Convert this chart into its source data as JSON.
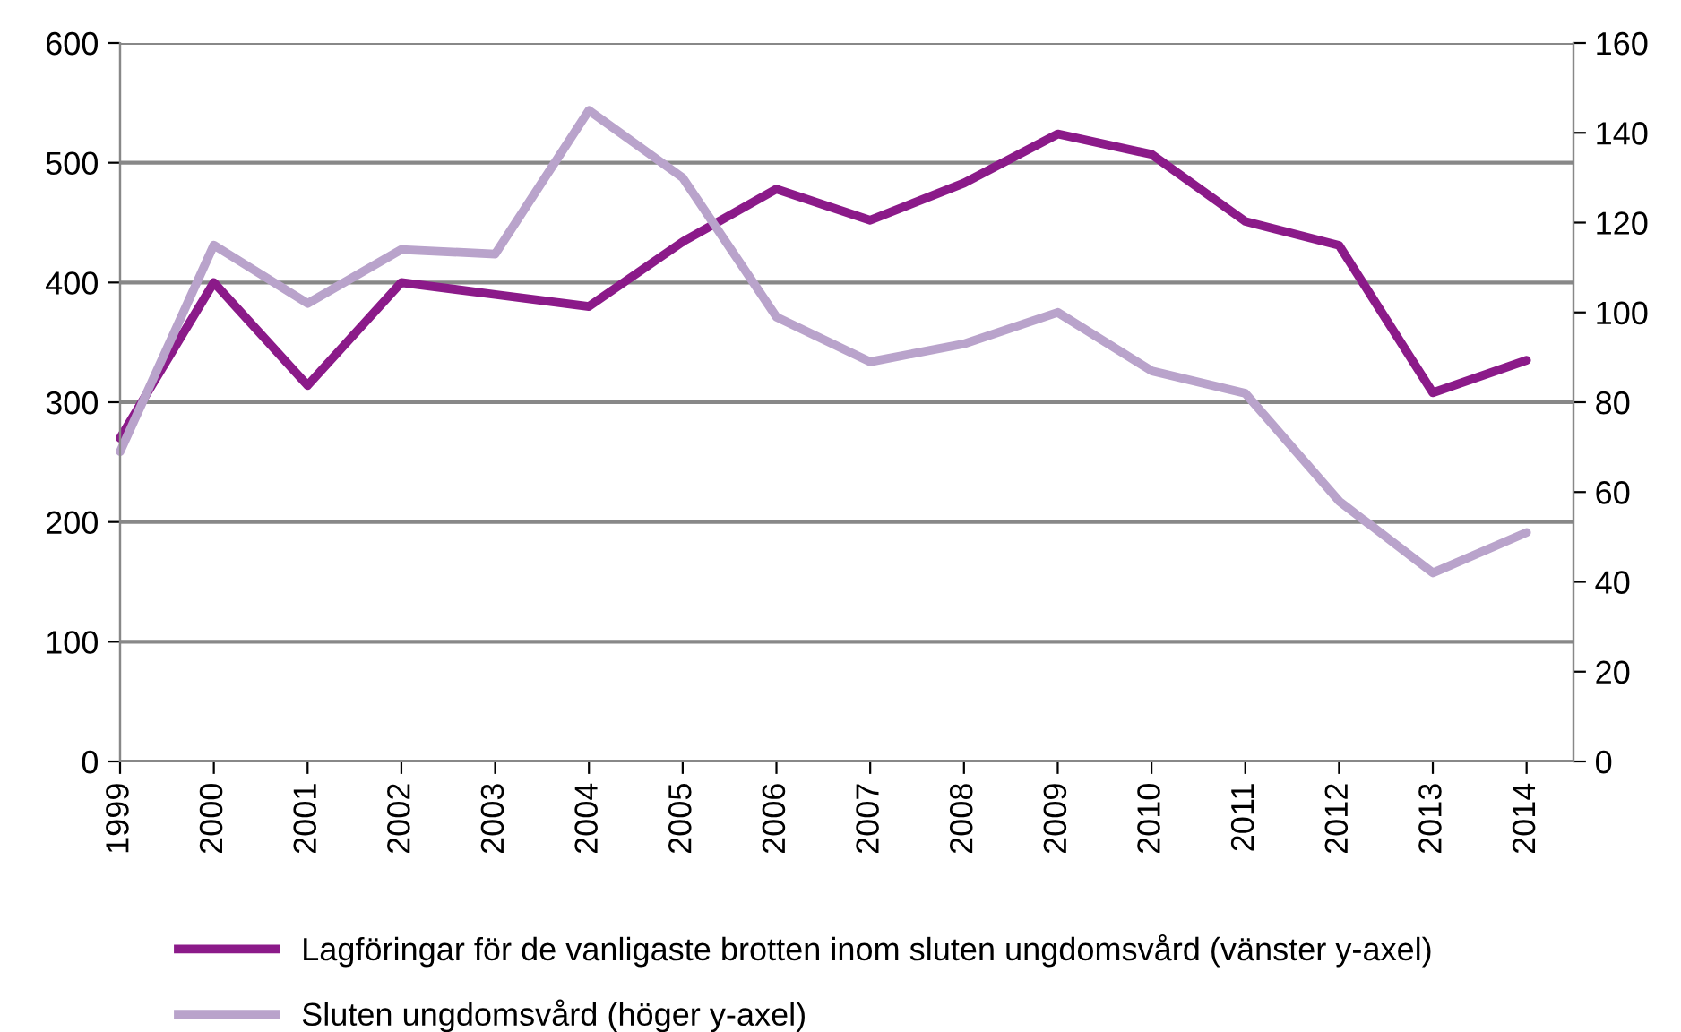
{
  "chart_data": {
    "type": "line",
    "categories": [
      "1999",
      "2000",
      "2001",
      "2002",
      "2003",
      "2004",
      "2005",
      "2006",
      "2007",
      "2008",
      "2009",
      "2010",
      "2011",
      "2012",
      "2013",
      "2014"
    ],
    "series": [
      {
        "name": "Lagföringar för de vanligaste brotten inom sluten ungdomsvård (vänster y-axel)",
        "color": "#8b1a89",
        "values": [
          270,
          400,
          314,
          400,
          390,
          380,
          434,
          478,
          452,
          483,
          524,
          507,
          451,
          431,
          308,
          335
        ]
      },
      {
        "name": "Sluten ungdomsvård (höger y-axel)",
        "color": "#b9a3cb",
        "axis": "y2",
        "values": [
          69,
          115,
          102,
          114,
          113,
          145,
          130,
          99,
          89,
          93,
          100,
          87,
          82,
          58,
          42,
          51
        ]
      }
    ],
    "ylim": [
      0,
      600
    ],
    "yticks": [
      0,
      100,
      200,
      300,
      400,
      500,
      600
    ],
    "y2lim": [
      0,
      160
    ],
    "y2ticks": [
      0,
      20,
      40,
      60,
      80,
      100,
      120,
      140,
      160
    ],
    "grid": "y",
    "legend": "bottom",
    "marker": "none",
    "line_style": "solid"
  }
}
